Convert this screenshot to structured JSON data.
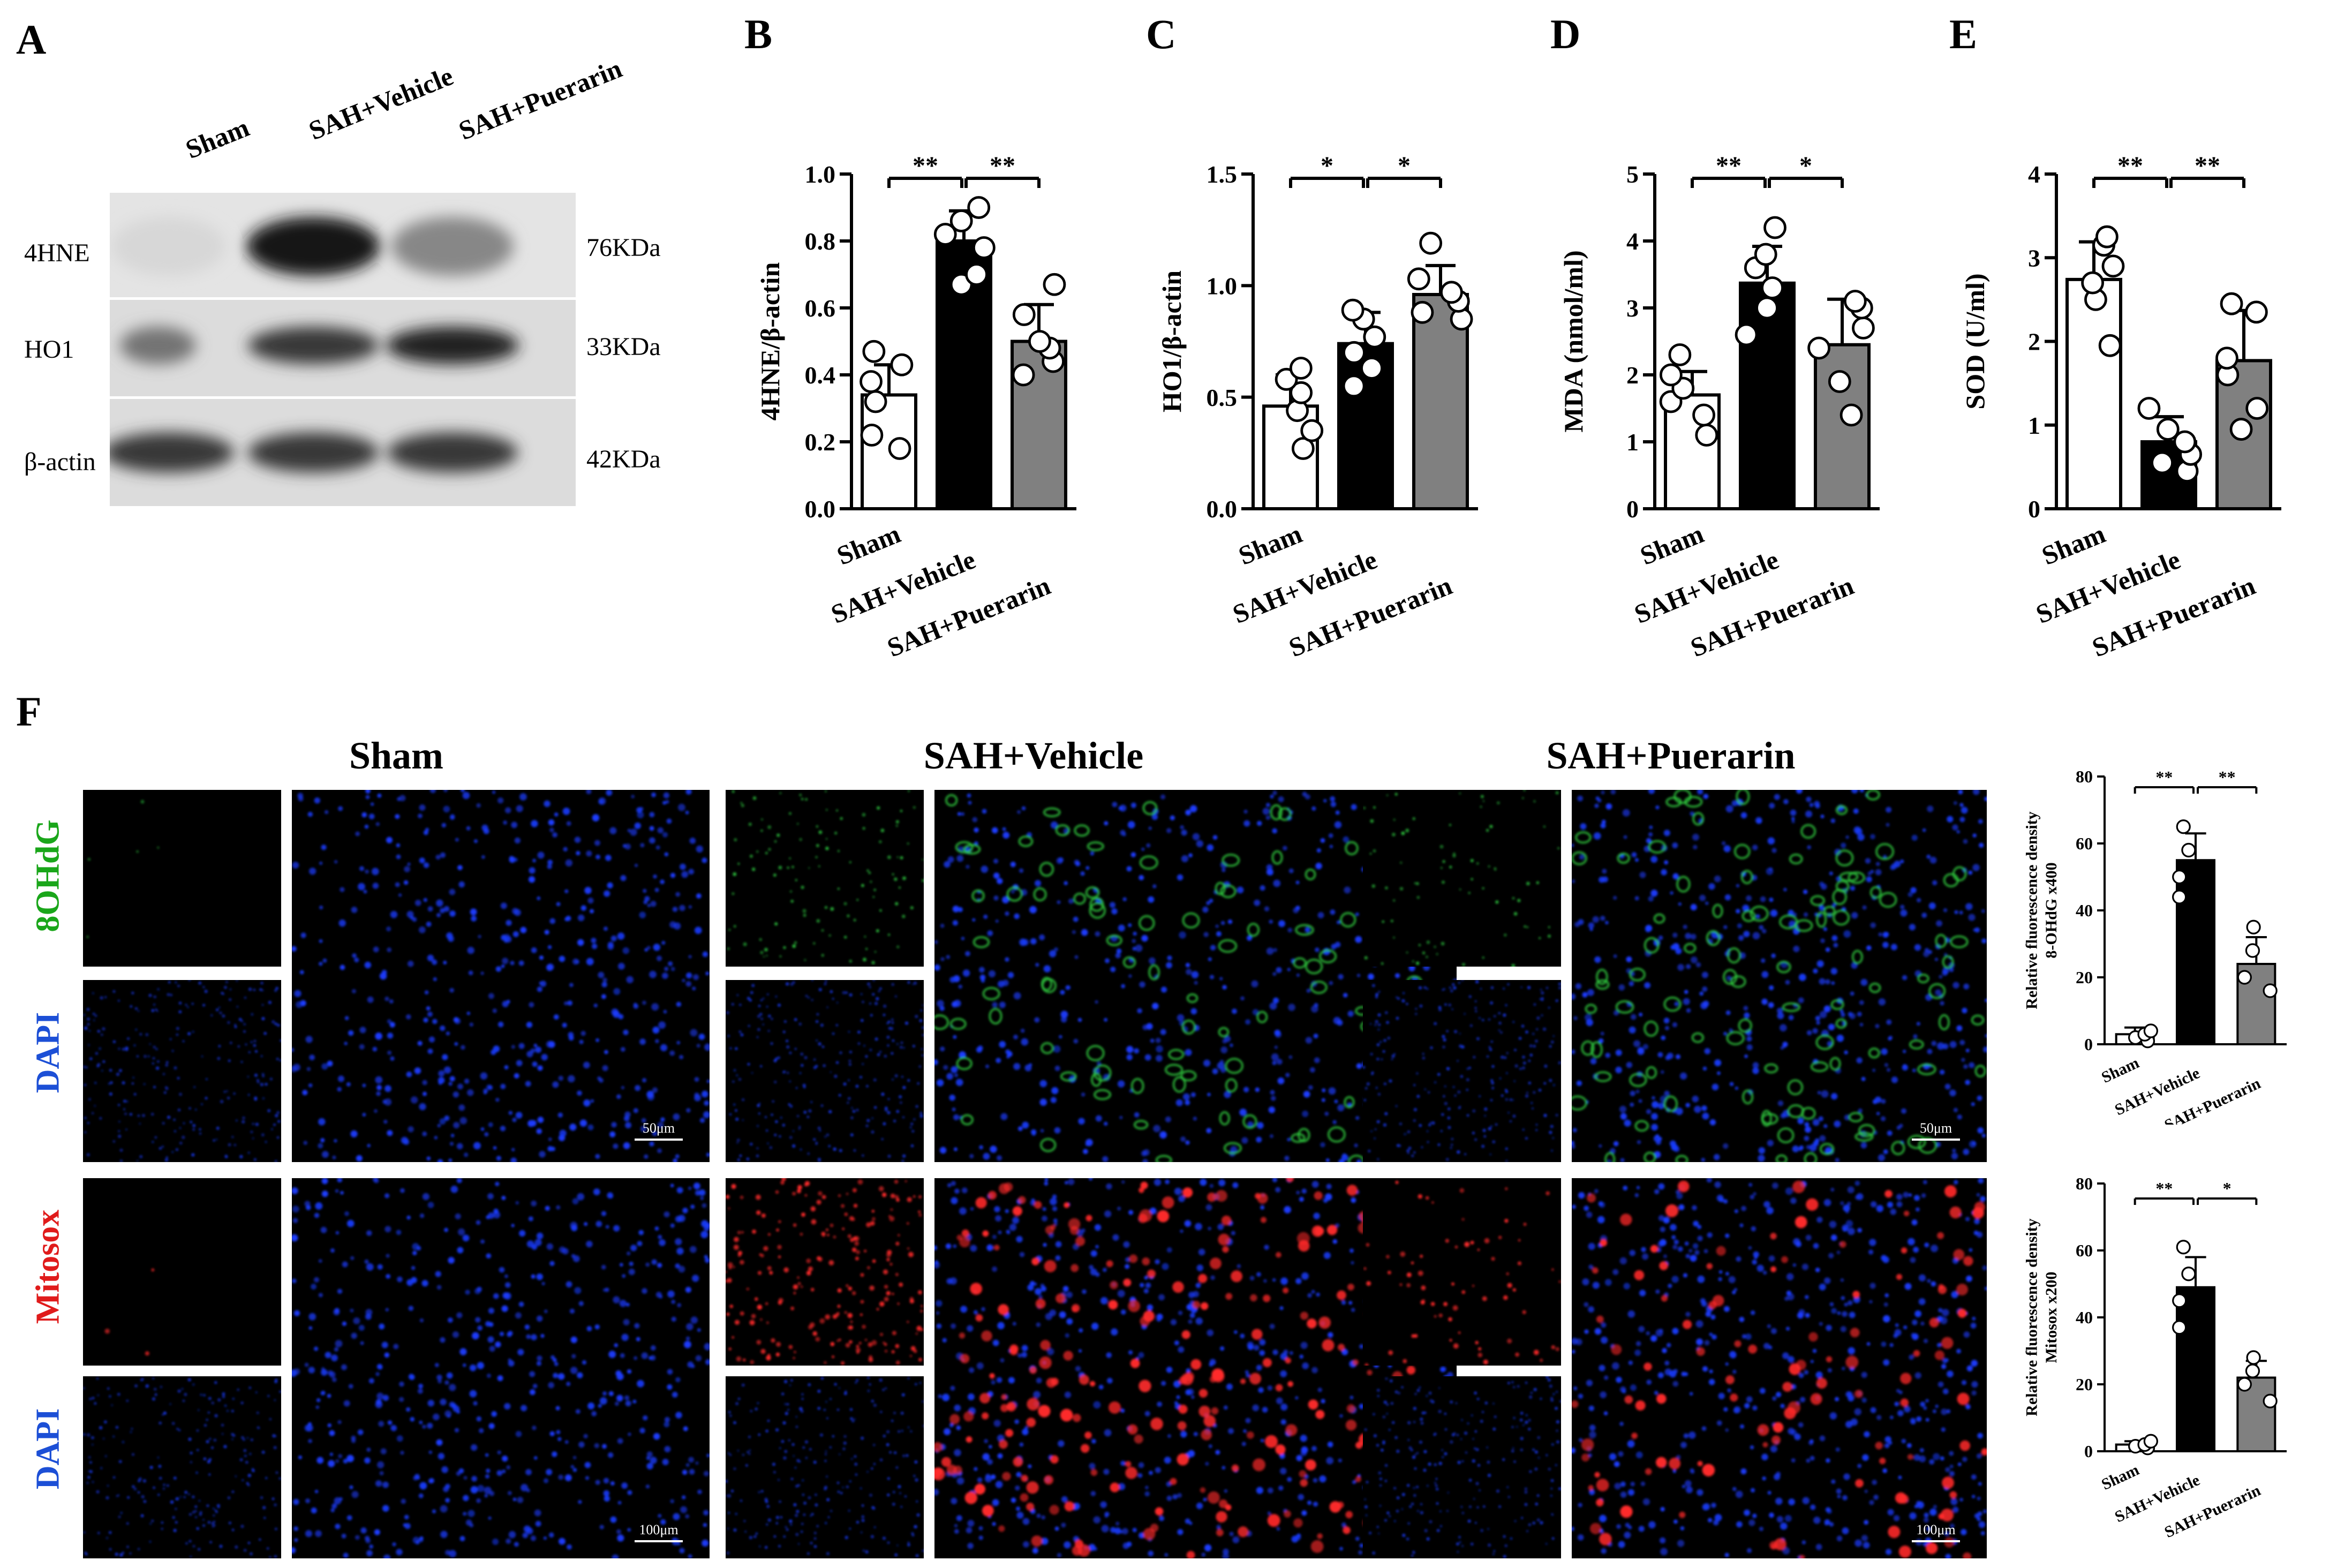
{
  "panel_labels": {
    "a": "A",
    "b": "B",
    "c": "C",
    "d": "D",
    "e": "E",
    "f": "F"
  },
  "blot": {
    "columns": [
      "Sham",
      "SAH+Vehicle",
      "SAH+Puerarin"
    ],
    "rows": [
      {
        "name": "4HNE",
        "size": "76KDa",
        "intensity": [
          0.05,
          1.0,
          0.45
        ]
      },
      {
        "name": "HO1",
        "size": "33KDa",
        "intensity": [
          0.55,
          0.85,
          0.95
        ]
      },
      {
        "name": "β-actin",
        "size": "42KDa",
        "intensity": [
          0.85,
          0.85,
          0.85
        ]
      }
    ]
  },
  "fluorescence": {
    "groups": [
      "Sham",
      "SAH+Vehicle",
      "SAH+Puerarin"
    ],
    "row_labels": {
      "ohdg": "8OHdG",
      "dapi": "DAPI",
      "mitosox": "Mitosox"
    },
    "scale_top": "50μm",
    "scale_bottom": "100μm",
    "colors": {
      "green": "#2ecc40",
      "blue": "#1a3cff",
      "red": "#ff2a2a",
      "label_green": "#1aa61a",
      "label_blue": "#1c4fd6",
      "label_red": "#e01b1b"
    }
  },
  "chart_data": [
    {
      "id": "B",
      "type": "bar",
      "ylabel": "4HNE/β-actin",
      "ylim": [
        0,
        1.0
      ],
      "yticks": [
        "0.0",
        "0.2",
        "0.4",
        "0.6",
        "0.8",
        "1.0"
      ],
      "categories": [
        "Sham",
        "SAH+Vehicle",
        "SAH+Puerarin"
      ],
      "values": [
        0.34,
        0.8,
        0.5
      ],
      "errors": [
        0.09,
        0.09,
        0.11
      ],
      "points": [
        [
          0.18,
          0.22,
          0.32,
          0.38,
          0.43,
          0.47
        ],
        [
          0.67,
          0.7,
          0.78,
          0.82,
          0.86,
          0.9
        ],
        [
          0.4,
          0.44,
          0.48,
          0.5,
          0.58,
          0.67
        ]
      ],
      "fills": [
        "#ffffff",
        "#000000",
        "#808080"
      ],
      "significance": [
        {
          "from": 0,
          "to": 1,
          "label": "**"
        },
        {
          "from": 1,
          "to": 2,
          "label": "**"
        }
      ]
    },
    {
      "id": "C",
      "type": "bar",
      "ylabel": "HO1/β-actin",
      "ylim": [
        0,
        1.5
      ],
      "yticks": [
        "0.0",
        "0.5",
        "1.0",
        "1.5"
      ],
      "categories": [
        "Sham",
        "SAH+Vehicle",
        "SAH+Puerarin"
      ],
      "values": [
        0.46,
        0.74,
        0.96
      ],
      "errors": [
        0.14,
        0.14,
        0.13
      ],
      "points": [
        [
          0.27,
          0.35,
          0.44,
          0.52,
          0.58,
          0.63
        ],
        [
          0.55,
          0.63,
          0.7,
          0.77,
          0.85,
          0.89
        ],
        [
          0.85,
          0.88,
          0.93,
          0.97,
          1.03,
          1.19
        ]
      ],
      "fills": [
        "#ffffff",
        "#000000",
        "#808080"
      ],
      "significance": [
        {
          "from": 0,
          "to": 1,
          "label": "*"
        },
        {
          "from": 1,
          "to": 2,
          "label": "*"
        }
      ]
    },
    {
      "id": "D",
      "type": "bar",
      "ylabel": "MDA (nmol/ml)",
      "ylim": [
        0,
        5
      ],
      "yticks": [
        "0",
        "1",
        "2",
        "3",
        "4",
        "5"
      ],
      "categories": [
        "Sham",
        "SAH+Vehicle",
        "SAH+Puerarin"
      ],
      "values": [
        1.7,
        3.37,
        2.45
      ],
      "errors": [
        0.35,
        0.55,
        0.68
      ],
      "points": [
        [
          1.1,
          1.4,
          1.6,
          1.8,
          2.0,
          2.3
        ],
        [
          2.6,
          3.0,
          3.3,
          3.6,
          3.8,
          4.2
        ],
        [
          1.4,
          1.9,
          2.4,
          2.7,
          3.0,
          3.1
        ]
      ],
      "fills": [
        "#ffffff",
        "#000000",
        "#808080"
      ],
      "significance": [
        {
          "from": 0,
          "to": 1,
          "label": "**"
        },
        {
          "from": 1,
          "to": 2,
          "label": "*"
        }
      ]
    },
    {
      "id": "E",
      "type": "bar",
      "ylabel": "SOD (U/ml)",
      "ylim": [
        0,
        4
      ],
      "yticks": [
        "0",
        "1",
        "2",
        "3",
        "4"
      ],
      "categories": [
        "Sham",
        "SAH+Vehicle",
        "SAH+Puerarin"
      ],
      "values": [
        2.74,
        0.8,
        1.77
      ],
      "errors": [
        0.45,
        0.3,
        0.6
      ],
      "points": [
        [
          1.95,
          2.5,
          2.7,
          2.9,
          3.15,
          3.25
        ],
        [
          0.45,
          0.55,
          0.65,
          0.8,
          0.95,
          1.2
        ],
        [
          0.95,
          1.2,
          1.6,
          1.8,
          2.35,
          2.45
        ]
      ],
      "fills": [
        "#ffffff",
        "#000000",
        "#808080"
      ],
      "significance": [
        {
          "from": 0,
          "to": 1,
          "label": "**"
        },
        {
          "from": 1,
          "to": 2,
          "label": "**"
        }
      ]
    },
    {
      "id": "F1",
      "type": "bar",
      "ylabel": "Relative fluorescence density",
      "ylabel2": "8-OHdG x400",
      "ylim": [
        0,
        80
      ],
      "yticks": [
        "0",
        "20",
        "40",
        "60",
        "80"
      ],
      "categories": [
        "Sham",
        "SAH+Vehicle",
        "SAH+Puerarin"
      ],
      "values": [
        3,
        55,
        24
      ],
      "errors": [
        2,
        8,
        8
      ],
      "points": [
        [
          1,
          2,
          3,
          4
        ],
        [
          44,
          50,
          58,
          65
        ],
        [
          16,
          20,
          28,
          35
        ]
      ],
      "fills": [
        "#ffffff",
        "#000000",
        "#808080"
      ],
      "significance": [
        {
          "from": 0,
          "to": 1,
          "label": "**"
        },
        {
          "from": 1,
          "to": 2,
          "label": "**"
        }
      ]
    },
    {
      "id": "F2",
      "type": "bar",
      "ylabel": "Relative fluorescence density",
      "ylabel2": "Mitosox x200",
      "ylim": [
        0,
        80
      ],
      "yticks": [
        "0",
        "20",
        "40",
        "60",
        "80"
      ],
      "categories": [
        "Sham",
        "SAH+Vehicle",
        "SAH+Puerarin"
      ],
      "values": [
        2,
        49,
        22
      ],
      "errors": [
        1,
        9,
        5
      ],
      "points": [
        [
          1,
          1.5,
          2,
          3
        ],
        [
          37,
          45,
          53,
          61
        ],
        [
          15,
          20,
          24,
          28
        ]
      ],
      "fills": [
        "#ffffff",
        "#000000",
        "#808080"
      ],
      "significance": [
        {
          "from": 0,
          "to": 1,
          "label": "**"
        },
        {
          "from": 1,
          "to": 2,
          "label": "*"
        }
      ]
    }
  ]
}
